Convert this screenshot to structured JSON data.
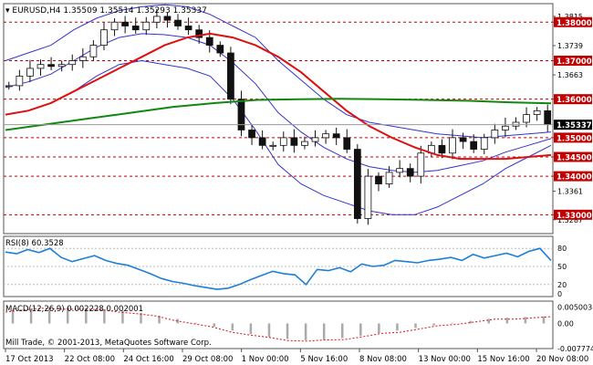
{
  "chart_data": [
    {
      "type": "candlestick",
      "title": "EURUSD,H4  1.35509 1.35514 1.35293 1.35337",
      "symbol": "EURUSD",
      "timeframe": "H4",
      "ohlc_readout": {
        "open": 1.35509,
        "high": 1.35514,
        "low": 1.35293,
        "close": 1.35337
      },
      "last_price": "1.35337",
      "ylim": [
        1.3251,
        1.3848
      ],
      "price_ticks": [
        "1.3815",
        "1.3800",
        "1.3739",
        "1.3700",
        "1.3663",
        "1.3600",
        "1.3500",
        "1.3450",
        "1.3400",
        "1.3361",
        "1.3300",
        "1.3287"
      ],
      "x_ticks": [
        "17 Oct 2013",
        "22 Oct 08:00",
        "24 Oct 16:00",
        "29 Oct 08:00",
        "1 Nov 00:00",
        "5 Nov 16:00",
        "8 Nov 08:00",
        "13 Nov 00:00",
        "15 Nov 16:00",
        "20 Nov 08:00"
      ],
      "horizontal_levels": [
        {
          "value": 1.38,
          "label": "1.38000"
        },
        {
          "value": 1.37,
          "label": "1.37000"
        },
        {
          "value": 1.36,
          "label": "1.36000"
        },
        {
          "value": 1.35,
          "label": "1.35000"
        },
        {
          "value": 1.345,
          "label": "1.34500"
        },
        {
          "value": 1.34,
          "label": "1.34000"
        },
        {
          "value": 1.33,
          "label": "1.33000"
        }
      ],
      "close_series": [
        1.3635,
        1.366,
        1.368,
        1.369,
        1.3685,
        1.369,
        1.37,
        1.371,
        1.374,
        1.378,
        1.38,
        1.379,
        1.378,
        1.38,
        1.3815,
        1.3805,
        1.379,
        1.378,
        1.376,
        1.374,
        1.372,
        1.36,
        1.352,
        1.35,
        1.348,
        1.348,
        1.35,
        1.348,
        1.349,
        1.35,
        1.351,
        1.35,
        1.347,
        1.329,
        1.34,
        1.338,
        1.341,
        1.342,
        1.34,
        1.346,
        1.348,
        1.346,
        1.35,
        1.349,
        1.347,
        1.35,
        1.352,
        1.353,
        1.354,
        1.356,
        1.357,
        1.3534
      ],
      "indicators": [
        {
          "name": "Bollinger Bands",
          "color": "#3333cc",
          "upper": [
            1.37,
            1.372,
            1.374,
            1.378,
            1.381,
            1.383,
            1.384,
            1.3845,
            1.384,
            1.382,
            1.379,
            1.376,
            1.37,
            1.365,
            1.36,
            1.356,
            1.354,
            1.353,
            1.352,
            1.351,
            1.3505,
            1.35,
            1.3505,
            1.351,
            1.3515
          ],
          "lower": [
            1.356,
            1.357,
            1.359,
            1.362,
            1.366,
            1.369,
            1.37,
            1.369,
            1.368,
            1.366,
            1.36,
            1.352,
            1.343,
            1.338,
            1.335,
            1.333,
            1.331,
            1.33,
            1.33,
            1.332,
            1.335,
            1.338,
            1.342,
            1.345,
            1.348
          ]
        },
        {
          "name": "MA (fast)",
          "color": "#dd1111",
          "values": [
            1.356,
            1.357,
            1.359,
            1.362,
            1.365,
            1.368,
            1.371,
            1.374,
            1.376,
            1.377,
            1.376,
            1.374,
            1.371,
            1.367,
            1.362,
            1.357,
            1.353,
            1.35,
            1.3475,
            1.3455,
            1.3445,
            1.3445,
            1.3445,
            1.345,
            1.3455
          ]
        },
        {
          "name": "MA (slow)",
          "color": "#118811",
          "values": [
            1.352,
            1.3535,
            1.355,
            1.3565,
            1.358,
            1.359,
            1.3598,
            1.36,
            1.3601,
            1.36,
            1.3598,
            1.3596,
            1.3592,
            1.3589
          ]
        }
      ]
    },
    {
      "type": "line",
      "title": "RSI(8) 60.3528",
      "ylim": [
        0,
        100
      ],
      "y_ticks": [
        "80",
        "50",
        "20",
        "0"
      ],
      "series": [
        {
          "values": [
            74,
            71,
            78,
            73,
            80,
            65,
            58,
            63,
            68,
            60,
            55,
            52,
            45,
            38,
            30,
            25,
            22,
            18,
            15,
            12,
            14,
            20,
            28,
            35,
            42,
            38,
            36,
            20,
            45,
            43,
            48,
            41,
            54,
            50,
            52,
            60,
            58,
            56,
            60,
            62,
            65,
            60,
            70,
            64,
            68,
            72,
            66,
            75,
            80,
            60
          ]
        }
      ]
    },
    {
      "type": "histogram",
      "title": "MACD(12,26,9) 0.002228 0.002001",
      "ylim": [
        -0.007774,
        0.0069
      ],
      "y_ticks": [
        "0.005003",
        "0.00",
        "-0.007774"
      ],
      "series": [
        {
          "values": [
            0.004,
            0.0045,
            0.0048,
            0.0049,
            0.0047,
            0.0044,
            0.004,
            0.0033,
            0.0024,
            0.0014,
            0.0002,
            -0.001,
            -0.0022,
            -0.0033,
            -0.0042,
            -0.0048,
            -0.0052,
            -0.005,
            -0.0045,
            -0.0038,
            -0.003,
            -0.0022,
            -0.0014,
            -0.0006,
            0.0002,
            0.0008,
            0.0014,
            0.0018,
            0.002,
            0.0022
          ]
        }
      ]
    }
  ],
  "copyright": "Mill Trade, © 2001-2013, MetaQuotes Software Corp."
}
